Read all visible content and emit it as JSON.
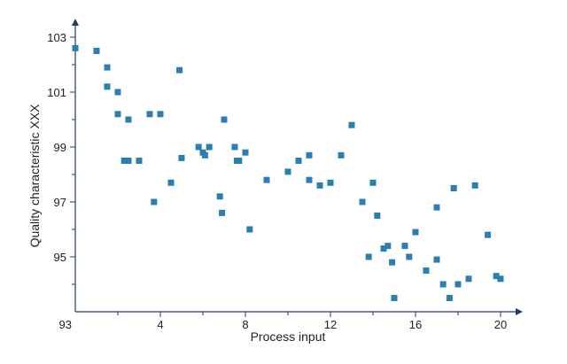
{
  "chart_data": {
    "type": "scatter",
    "title": "",
    "xlabel": "Process input",
    "ylabel": "Quality characteristic XXX",
    "xlim": [
      0,
      21
    ],
    "ylim": [
      93,
      104
    ],
    "origin_label": "93",
    "x_ticks": [
      4,
      8,
      12,
      16,
      20
    ],
    "x_tick_labels": [
      "4",
      "8",
      "12",
      "16",
      "20"
    ],
    "y_ticks": [
      95,
      97,
      99,
      101,
      103
    ],
    "y_tick_labels": [
      "95",
      "97",
      "99",
      "101",
      "103"
    ],
    "grid": false,
    "legend": "none",
    "series": [
      {
        "color": "#2a7fb0",
        "points": [
          [
            0.0,
            102.6
          ],
          [
            1.0,
            102.5
          ],
          [
            1.5,
            101.9
          ],
          [
            1.5,
            101.2
          ],
          [
            2.0,
            101.0
          ],
          [
            2.0,
            100.2
          ],
          [
            2.5,
            100.0
          ],
          [
            2.3,
            98.5
          ],
          [
            2.5,
            98.5
          ],
          [
            3.0,
            98.5
          ],
          [
            3.5,
            100.2
          ],
          [
            4.0,
            100.2
          ],
          [
            4.9,
            101.8
          ],
          [
            3.7,
            97.0
          ],
          [
            4.5,
            97.7
          ],
          [
            5.0,
            98.6
          ],
          [
            5.8,
            99.0
          ],
          [
            6.0,
            98.8
          ],
          [
            6.1,
            98.7
          ],
          [
            6.3,
            99.0
          ],
          [
            7.0,
            100.0
          ],
          [
            7.5,
            99.0
          ],
          [
            7.6,
            98.5
          ],
          [
            7.7,
            98.5
          ],
          [
            8.0,
            98.8
          ],
          [
            6.8,
            97.2
          ],
          [
            6.9,
            96.6
          ],
          [
            8.2,
            96.0
          ],
          [
            9.0,
            97.8
          ],
          [
            10.0,
            98.1
          ],
          [
            10.5,
            98.5
          ],
          [
            11.0,
            98.7
          ],
          [
            11.0,
            97.8
          ],
          [
            11.5,
            97.6
          ],
          [
            12.0,
            97.7
          ],
          [
            12.5,
            98.7
          ],
          [
            13.0,
            99.8
          ],
          [
            13.5,
            97.0
          ],
          [
            14.0,
            97.7
          ],
          [
            14.2,
            96.5
          ],
          [
            13.8,
            95.0
          ],
          [
            14.5,
            95.3
          ],
          [
            14.7,
            95.4
          ],
          [
            14.9,
            94.8
          ],
          [
            15.0,
            93.5
          ],
          [
            15.5,
            95.4
          ],
          [
            15.7,
            95.0
          ],
          [
            16.0,
            95.9
          ],
          [
            16.5,
            94.5
          ],
          [
            17.0,
            94.9
          ],
          [
            17.0,
            96.8
          ],
          [
            17.3,
            94.0
          ],
          [
            17.6,
            93.5
          ],
          [
            17.8,
            97.5
          ],
          [
            18.0,
            94.0
          ],
          [
            18.5,
            94.2
          ],
          [
            18.8,
            97.6
          ],
          [
            19.4,
            95.8
          ],
          [
            19.8,
            94.3
          ],
          [
            20.0,
            94.2
          ]
        ]
      }
    ]
  }
}
